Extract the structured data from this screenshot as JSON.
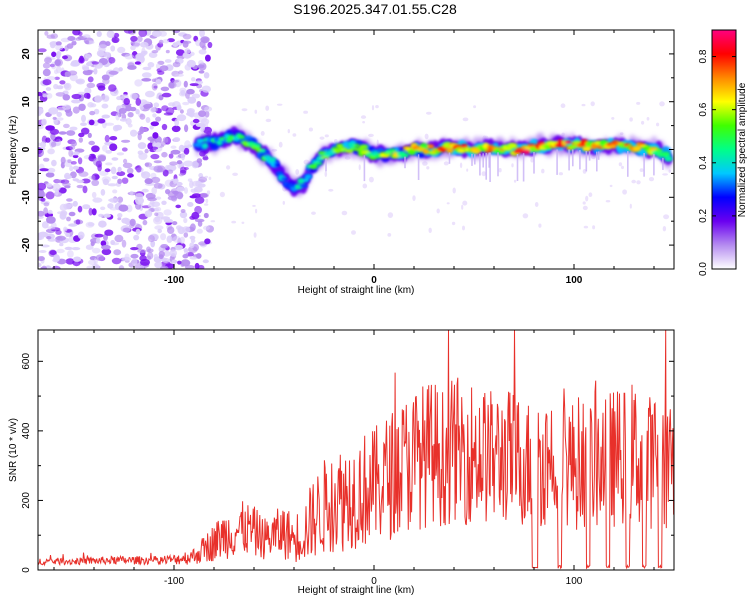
{
  "title": "S196.2025.347.01.55.C28",
  "chart_data": [
    {
      "type": "heatmap",
      "xlabel": "Height of straight line (km)",
      "ylabel": "Frequency (Hz)",
      "xlim": [
        -168,
        150
      ],
      "ylim": [
        -25,
        25
      ],
      "xticks": [
        -100,
        0,
        100
      ],
      "yticks": [
        -20,
        -10,
        0,
        10,
        20
      ],
      "colorbar": {
        "label": "Normalized spectral amplitude",
        "range": [
          0.0,
          0.9
        ],
        "ticks": [
          0.0,
          0.2,
          0.4,
          0.6,
          0.8
        ],
        "colormap": [
          "#ffffff",
          "#b58cf0",
          "#6a00f0",
          "#0000ff",
          "#00c8ff",
          "#00ff88",
          "#40ff00",
          "#ffff00",
          "#ff8800",
          "#ff0000",
          "#ff0080"
        ]
      },
      "noise_region_x": [
        -168,
        -88
      ],
      "ridge": {
        "x": [
          -88,
          -80,
          -70,
          -60,
          -55,
          -50,
          -45,
          -40,
          -35,
          -30,
          -25,
          -20,
          -10,
          0,
          10,
          20,
          30,
          40,
          50,
          60,
          70,
          80,
          90,
          100,
          110,
          120,
          130,
          140,
          148
        ],
        "freq": [
          1,
          1.5,
          3,
          1,
          -1,
          -3,
          -6,
          -8,
          -7,
          -3,
          -1,
          0,
          0.5,
          -1,
          -1,
          0,
          0,
          0.5,
          0,
          0.5,
          0,
          0.5,
          1,
          1,
          0.5,
          1,
          0.5,
          0,
          -1.5
        ],
        "amplitude": [
          0.35,
          0.4,
          0.45,
          0.5,
          0.45,
          0.35,
          0.35,
          0.35,
          0.4,
          0.45,
          0.5,
          0.5,
          0.55,
          0.5,
          0.55,
          0.6,
          0.65,
          0.75,
          0.7,
          0.65,
          0.7,
          0.75,
          0.7,
          0.75,
          0.7,
          0.65,
          0.7,
          0.6,
          0.5
        ]
      }
    },
    {
      "type": "line",
      "xlabel": "Height of straight line (km)",
      "ylabel": "SNR (10 * v/v)",
      "xlim": [
        -168,
        150
      ],
      "ylim": [
        0,
        690
      ],
      "xticks": [
        -100,
        0,
        100
      ],
      "yticks": [
        0,
        200,
        400,
        600
      ],
      "color": "#e8302a",
      "series": [
        {
          "x": [
            -168,
            -150,
            -130,
            -110,
            -100,
            -90,
            -85,
            -80,
            -75,
            -70,
            -65,
            -60,
            -55,
            -50,
            -45,
            -40,
            -35,
            -30,
            -25,
            -20,
            -15,
            -10,
            -5,
            0,
            5,
            10,
            15,
            20,
            25,
            30,
            35,
            40,
            45,
            50,
            55,
            60,
            65,
            70,
            75,
            80,
            85,
            90,
            95,
            100,
            105,
            110,
            115,
            120,
            125,
            130,
            135,
            140,
            145,
            150
          ],
          "y": [
            25,
            25,
            28,
            28,
            30,
            40,
            60,
            80,
            100,
            110,
            120,
            110,
            90,
            100,
            110,
            90,
            110,
            150,
            180,
            200,
            210,
            220,
            230,
            240,
            260,
            280,
            300,
            320,
            330,
            340,
            320,
            350,
            340,
            340,
            330,
            320,
            330,
            320,
            310,
            300,
            320,
            330,
            320,
            300,
            320,
            310,
            330,
            320,
            330,
            340,
            300,
            320,
            310,
            330
          ],
          "spread": [
            10,
            10,
            12,
            12,
            15,
            25,
            40,
            55,
            70,
            75,
            80,
            75,
            60,
            70,
            80,
            70,
            90,
            120,
            140,
            150,
            160,
            160,
            170,
            170,
            180,
            190,
            200,
            210,
            210,
            210,
            200,
            210,
            210,
            210,
            200,
            200,
            200,
            200,
            190,
            190,
            200,
            200,
            200,
            190,
            200,
            200,
            200,
            200,
            200,
            210,
            190,
            200,
            200,
            200
          ],
          "dropouts": [
            [
              79,
              82
            ],
            [
              92,
              94
            ],
            [
              106,
              108
            ],
            [
              116,
              118
            ],
            [
              126,
              128
            ],
            [
              134,
              136
            ],
            [
              142,
              144
            ]
          ],
          "peak_max": 690
        }
      ]
    }
  ]
}
